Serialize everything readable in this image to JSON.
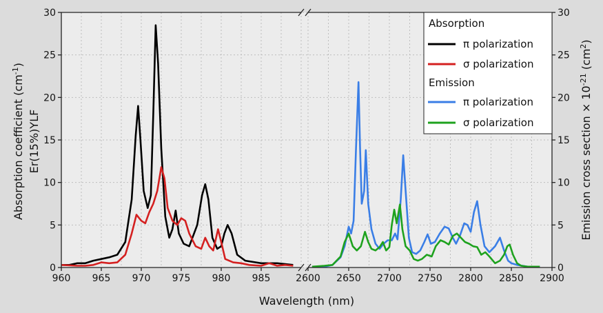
{
  "chart_data": {
    "type": "line",
    "xlabel": "Wavelength (nm)",
    "ylabel_left_line1": "Absorption coefficient (cm",
    "ylabel_left_sup": "-1",
    "ylabel_left_close": ")",
    "ylabel_left_line2": "Er(15%)YLF",
    "ylabel_right": "Emission cross section × 10",
    "ylabel_right_sup": "-21",
    "ylabel_right_unit": " (cm",
    "ylabel_right_unit_sup": "2",
    "ylabel_right_close": ")",
    "x_left_range": [
      960,
      990
    ],
    "x_left_ticks": [
      "960",
      "965",
      "970",
      "975",
      "980",
      "985"
    ],
    "x_right_range": [
      2600,
      2900
    ],
    "x_right_ticks": [
      "2600",
      "2650",
      "2700",
      "2750",
      "2800",
      "2850",
      "2900"
    ],
    "y_left_range": [
      0,
      30
    ],
    "y_left_ticks": [
      "0",
      "5",
      "10",
      "15",
      "20",
      "25",
      "30"
    ],
    "y_right_range": [
      0,
      30
    ],
    "y_right_ticks": [
      "0",
      "5",
      "10",
      "15",
      "20",
      "25",
      "30"
    ],
    "grid": true,
    "axis_break": true,
    "legend": {
      "position": "top-right",
      "absorption_header": "Absorption",
      "emission_header": "Emission",
      "entries": [
        {
          "label": "π polarization",
          "color": "#000000"
        },
        {
          "label": "σ polarization",
          "color": "#d42020"
        },
        {
          "label": "π polarization",
          "color": "#3a7ee6"
        },
        {
          "label": "σ polarization",
          "color": "#1ea21e"
        }
      ]
    },
    "series": [
      {
        "group": "Absorption",
        "polarization": "π",
        "color": "#000000",
        "axis": "left",
        "points": [
          [
            960,
            0.3
          ],
          [
            961,
            0.3
          ],
          [
            962,
            0.5
          ],
          [
            963,
            0.5
          ],
          [
            964,
            0.8
          ],
          [
            965,
            1.0
          ],
          [
            966,
            1.2
          ],
          [
            967,
            1.5
          ],
          [
            968,
            3.0
          ],
          [
            968.8,
            8.0
          ],
          [
            969.3,
            15.5
          ],
          [
            969.6,
            19.0
          ],
          [
            969.9,
            15.0
          ],
          [
            970.3,
            9.0
          ],
          [
            970.8,
            7.0
          ],
          [
            971.2,
            8.5
          ],
          [
            971.5,
            18.0
          ],
          [
            971.8,
            28.5
          ],
          [
            972.1,
            24.0
          ],
          [
            972.5,
            14.0
          ],
          [
            973.0,
            6.0
          ],
          [
            973.5,
            3.5
          ],
          [
            973.9,
            4.5
          ],
          [
            974.3,
            6.7
          ],
          [
            974.7,
            4.0
          ],
          [
            975.3,
            2.8
          ],
          [
            976.0,
            2.5
          ],
          [
            977.0,
            5.0
          ],
          [
            977.6,
            8.5
          ],
          [
            978.0,
            9.8
          ],
          [
            978.4,
            8.0
          ],
          [
            978.9,
            3.5
          ],
          [
            979.5,
            2.2
          ],
          [
            980.0,
            2.5
          ],
          [
            980.4,
            4.0
          ],
          [
            980.8,
            5.0
          ],
          [
            981.3,
            4.0
          ],
          [
            982.0,
            1.5
          ],
          [
            983.0,
            0.8
          ],
          [
            985.0,
            0.5
          ],
          [
            987.0,
            0.5
          ],
          [
            988.0,
            0.4
          ],
          [
            989.0,
            0.3
          ]
        ]
      },
      {
        "group": "Absorption",
        "polarization": "σ",
        "color": "#d42020",
        "axis": "left",
        "points": [
          [
            960,
            0.3
          ],
          [
            962,
            0.2
          ],
          [
            963,
            0.2
          ],
          [
            964,
            0.3
          ],
          [
            965,
            0.6
          ],
          [
            966,
            0.5
          ],
          [
            967,
            0.6
          ],
          [
            968,
            1.5
          ],
          [
            968.8,
            4.0
          ],
          [
            969.4,
            6.2
          ],
          [
            970.0,
            5.5
          ],
          [
            970.5,
            5.2
          ],
          [
            971.0,
            6.5
          ],
          [
            971.5,
            7.5
          ],
          [
            972.0,
            9.0
          ],
          [
            972.5,
            11.8
          ],
          [
            972.9,
            10.5
          ],
          [
            973.3,
            7.0
          ],
          [
            973.9,
            5.5
          ],
          [
            974.5,
            5.0
          ],
          [
            975.0,
            5.8
          ],
          [
            975.5,
            5.5
          ],
          [
            976.0,
            4.0
          ],
          [
            976.8,
            2.5
          ],
          [
            977.5,
            2.2
          ],
          [
            978.0,
            3.5
          ],
          [
            978.5,
            2.5
          ],
          [
            979.0,
            2.0
          ],
          [
            979.6,
            4.5
          ],
          [
            980.0,
            3.0
          ],
          [
            980.5,
            1.0
          ],
          [
            981.5,
            0.6
          ],
          [
            982.5,
            0.5
          ],
          [
            983.5,
            0.3
          ],
          [
            985.0,
            0.2
          ],
          [
            986.0,
            0.5
          ],
          [
            987.0,
            0.2
          ],
          [
            988.0,
            0.3
          ],
          [
            989.0,
            0.2
          ]
        ]
      },
      {
        "group": "Emission",
        "polarization": "π",
        "color": "#3a7ee6",
        "axis": "right",
        "points": [
          [
            2605,
            0.1
          ],
          [
            2620,
            0.1
          ],
          [
            2630,
            0.3
          ],
          [
            2640,
            1.2
          ],
          [
            2645,
            2.5
          ],
          [
            2650,
            4.8
          ],
          [
            2653,
            4.0
          ],
          [
            2656,
            5.5
          ],
          [
            2659,
            14.0
          ],
          [
            2662,
            21.8
          ],
          [
            2664,
            14.0
          ],
          [
            2666,
            7.5
          ],
          [
            2669,
            9.0
          ],
          [
            2671,
            13.8
          ],
          [
            2674,
            7.5
          ],
          [
            2678,
            4.5
          ],
          [
            2683,
            2.8
          ],
          [
            2688,
            2.2
          ],
          [
            2693,
            2.8
          ],
          [
            2698,
            3.2
          ],
          [
            2703,
            3.2
          ],
          [
            2707,
            4.0
          ],
          [
            2710,
            3.3
          ],
          [
            2714,
            8.0
          ],
          [
            2717,
            13.2
          ],
          [
            2720,
            9.0
          ],
          [
            2724,
            3.5
          ],
          [
            2728,
            1.8
          ],
          [
            2733,
            1.6
          ],
          [
            2738,
            2.0
          ],
          [
            2743,
            3.0
          ],
          [
            2747,
            3.9
          ],
          [
            2751,
            2.8
          ],
          [
            2756,
            3.0
          ],
          [
            2762,
            4.0
          ],
          [
            2768,
            4.8
          ],
          [
            2773,
            4.6
          ],
          [
            2778,
            3.5
          ],
          [
            2782,
            2.8
          ],
          [
            2787,
            3.8
          ],
          [
            2792,
            5.2
          ],
          [
            2796,
            5.0
          ],
          [
            2800,
            4.2
          ],
          [
            2804,
            6.5
          ],
          [
            2808,
            7.8
          ],
          [
            2812,
            5.0
          ],
          [
            2817,
            2.5
          ],
          [
            2823,
            1.8
          ],
          [
            2830,
            2.5
          ],
          [
            2836,
            3.5
          ],
          [
            2841,
            2.0
          ],
          [
            2846,
            0.8
          ],
          [
            2850,
            0.5
          ],
          [
            2857,
            0.3
          ],
          [
            2870,
            0.1
          ],
          [
            2885,
            0.1
          ]
        ]
      },
      {
        "group": "Emission",
        "polarization": "σ",
        "color": "#1ea21e",
        "axis": "right",
        "points": [
          [
            2605,
            0.1
          ],
          [
            2620,
            0.2
          ],
          [
            2630,
            0.3
          ],
          [
            2640,
            1.3
          ],
          [
            2645,
            3.0
          ],
          [
            2650,
            4.0
          ],
          [
            2655,
            2.5
          ],
          [
            2660,
            2.0
          ],
          [
            2665,
            2.5
          ],
          [
            2670,
            4.2
          ],
          [
            2674,
            3.0
          ],
          [
            2678,
            2.2
          ],
          [
            2683,
            2.0
          ],
          [
            2688,
            2.4
          ],
          [
            2692,
            3.0
          ],
          [
            2696,
            2.0
          ],
          [
            2700,
            2.4
          ],
          [
            2703,
            5.0
          ],
          [
            2706,
            6.8
          ],
          [
            2709,
            5.2
          ],
          [
            2713,
            7.4
          ],
          [
            2716,
            4.5
          ],
          [
            2720,
            2.5
          ],
          [
            2725,
            2.0
          ],
          [
            2730,
            1.0
          ],
          [
            2735,
            0.8
          ],
          [
            2740,
            1.0
          ],
          [
            2746,
            1.5
          ],
          [
            2752,
            1.3
          ],
          [
            2757,
            2.5
          ],
          [
            2763,
            3.2
          ],
          [
            2768,
            3.0
          ],
          [
            2773,
            2.7
          ],
          [
            2778,
            3.7
          ],
          [
            2783,
            4.0
          ],
          [
            2788,
            3.5
          ],
          [
            2793,
            3.0
          ],
          [
            2798,
            2.8
          ],
          [
            2803,
            2.5
          ],
          [
            2808,
            2.4
          ],
          [
            2813,
            1.5
          ],
          [
            2818,
            1.8
          ],
          [
            2823,
            1.3
          ],
          [
            2830,
            0.5
          ],
          [
            2836,
            0.8
          ],
          [
            2841,
            1.5
          ],
          [
            2845,
            2.5
          ],
          [
            2848,
            2.7
          ],
          [
            2852,
            1.5
          ],
          [
            2857,
            0.5
          ],
          [
            2862,
            0.2
          ],
          [
            2870,
            0.1
          ],
          [
            2885,
            0.1
          ]
        ]
      }
    ]
  }
}
